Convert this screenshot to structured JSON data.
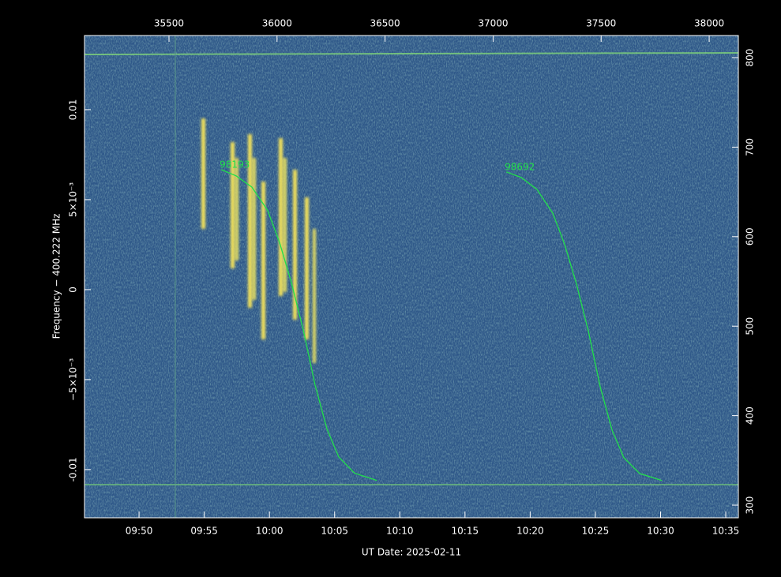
{
  "chart_data": {
    "type": "line",
    "xlabel": "UT Date: 2025-02-11",
    "ylabel": "Frequency − 400.222 MHz",
    "xlim": [
      35149,
      38158
    ],
    "xticks": [
      {
        "value": 35400,
        "label": "09:50"
      },
      {
        "value": 35700,
        "label": "09:55"
      },
      {
        "value": 36000,
        "label": "10:00"
      },
      {
        "value": 36300,
        "label": "10:05"
      },
      {
        "value": 36600,
        "label": "10:10"
      },
      {
        "value": 36900,
        "label": "10:15"
      },
      {
        "value": 37200,
        "label": "10:20"
      },
      {
        "value": 37500,
        "label": "10:25"
      },
      {
        "value": 37800,
        "label": "10:30"
      },
      {
        "value": 38100,
        "label": "10:35"
      }
    ],
    "x2lim": [
      35109,
      38135
    ],
    "x2ticks": [
      35500,
      36000,
      36500,
      37000,
      37500,
      38000
    ],
    "ylim": [
      -0.01268,
      0.01412
    ],
    "yticks": [
      -0.01,
      {
        "value": -0.005,
        "label": "−5×10⁻³"
      },
      0,
      {
        "value": 0.005,
        "label": "5×10⁻³"
      },
      0.01
    ],
    "y2lim": [
      285.9,
      824.7
    ],
    "y2ticks": [
      300,
      400,
      500,
      600,
      700,
      800
    ],
    "series": [
      {
        "name": "98193",
        "color": "#22e04a",
        "x": [
          35778,
          35847,
          35919,
          35992,
          36047,
          36101,
          36156,
          36210,
          36265,
          36319,
          36392,
          36494
        ],
        "values": [
          0.00667,
          0.00632,
          0.0057,
          0.0044,
          0.0026,
          0.0004,
          -0.00225,
          -0.0053,
          -0.00775,
          -0.0093,
          -0.0102,
          -0.0106
        ]
      },
      {
        "name": "98692",
        "color": "#22e04a",
        "x": [
          37090,
          37159,
          37231,
          37304,
          37359,
          37413,
          37468,
          37522,
          37577,
          37631,
          37704,
          37806
        ],
        "values": [
          0.00654,
          0.00623,
          0.00557,
          0.00425,
          0.0025,
          0.00031,
          -0.00232,
          -0.00539,
          -0.00781,
          -0.00934,
          -0.01022,
          -0.01061
        ]
      }
    ]
  }
}
